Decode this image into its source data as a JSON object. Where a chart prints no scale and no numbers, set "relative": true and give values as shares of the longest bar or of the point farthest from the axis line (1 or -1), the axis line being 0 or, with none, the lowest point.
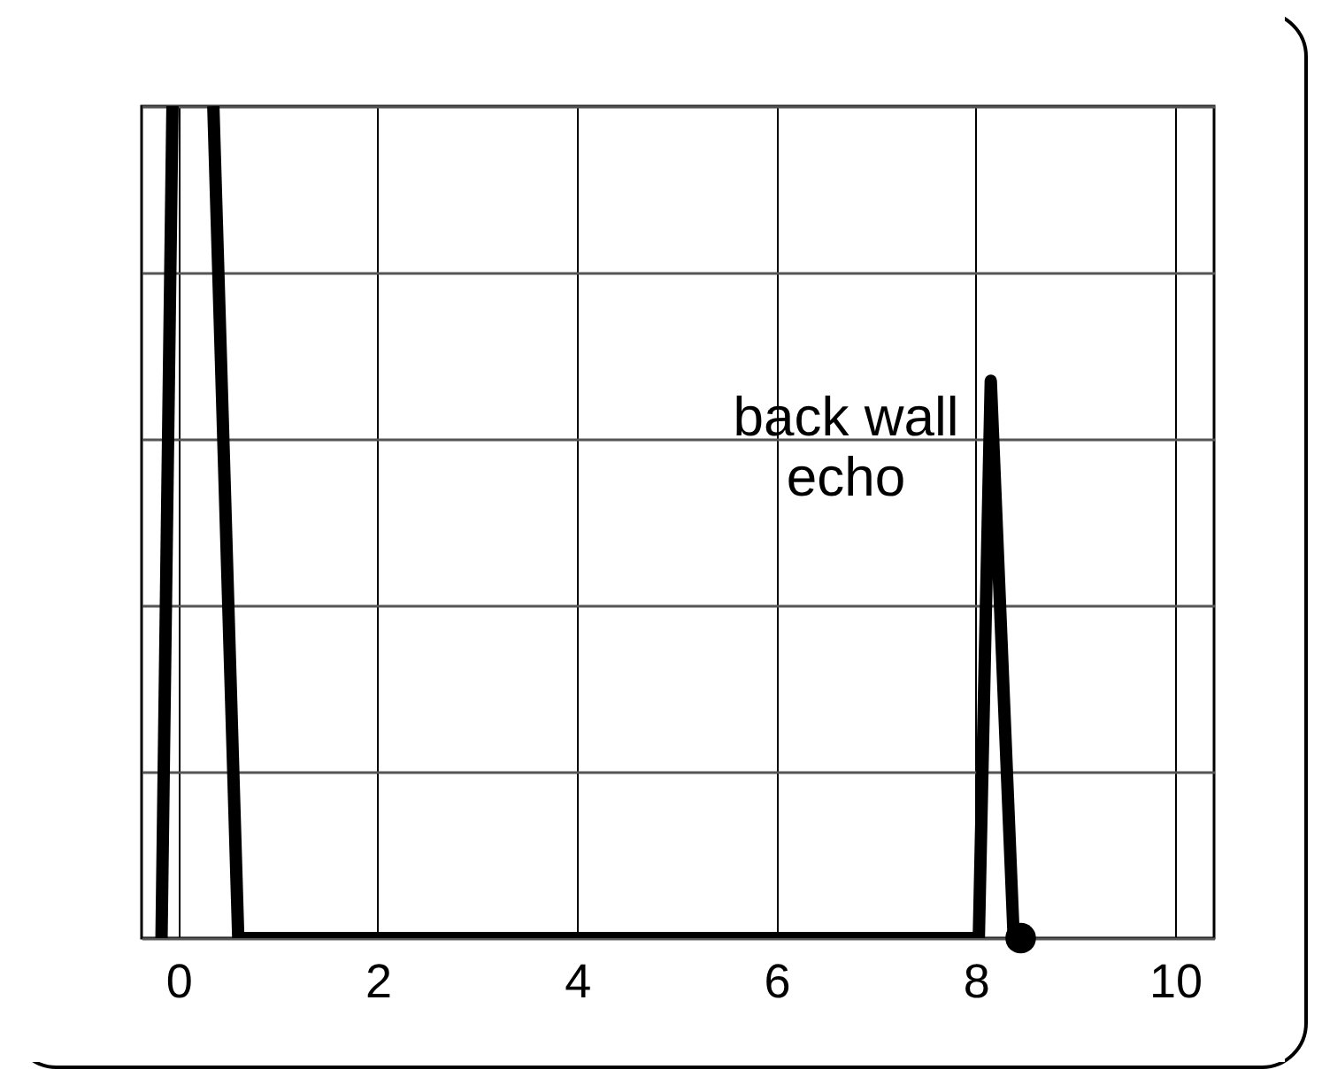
{
  "chart_data": {
    "type": "line",
    "relative": true,
    "annotations": [
      "back wall\necho"
    ],
    "xlim": [
      -0.37,
      10.39
    ],
    "xticks": [
      0,
      2,
      4,
      6,
      8,
      10
    ],
    "grid": true,
    "tick_labels": "x",
    "series": [
      {
        "color": "#000000",
        "x": [
          -0.17,
          -0.06,
          0.2,
          0.35,
          0.6,
          8.03,
          8.15,
          8.38
        ],
        "values": [
          0,
          1,
          null,
          1,
          0,
          0,
          0.67,
          0
        ]
      },
      {
        "type": "scatter",
        "color": "#000000",
        "marker": "circle",
        "x": [
          8.45
        ],
        "values": [
          0
        ]
      }
    ]
  }
}
